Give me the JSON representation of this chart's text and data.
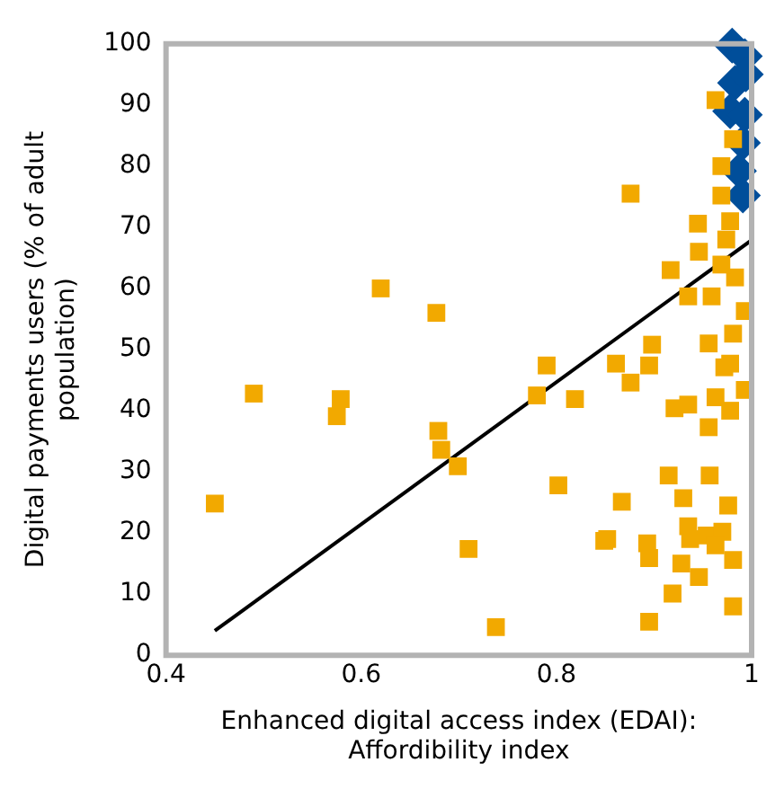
{
  "chart_data": {
    "type": "scatter",
    "xlabel": "Enhanced digital access index (EDAI): Affordibility index",
    "ylabel": "Digital payments users (% of adult population)",
    "xlim": [
      0.4,
      1
    ],
    "xticks": [
      0.4,
      0.6,
      0.8,
      {
        "value": 1,
        "label": "1"
      }
    ],
    "ylim": [
      0,
      100
    ],
    "yticks": [
      0,
      10,
      20,
      30,
      40,
      50,
      60,
      70,
      80,
      90,
      100
    ],
    "grid": false,
    "legend": false,
    "series": [
      {
        "type": "scatter",
        "marker": "square",
        "color": "#f2a900",
        "x": [
          0.45,
          0.49,
          0.579,
          0.575,
          0.62,
          0.677,
          0.679,
          0.682,
          0.699,
          0.71,
          0.738,
          0.79,
          0.78,
          0.819,
          0.802,
          0.849,
          0.861,
          0.876,
          0.895,
          0.972,
          0.921,
          0.935,
          0.956,
          0.963,
          0.978,
          0.993,
          0.867,
          0.915,
          0.957,
          0.93,
          0.976,
          0.852,
          0.893,
          0.895,
          0.935,
          0.954,
          0.937,
          0.97,
          0.963,
          0.928,
          0.981,
          0.946,
          0.919,
          0.981,
          0.895,
          0.963,
          0.969,
          0.876,
          0.969,
          0.981,
          0.945,
          0.978,
          0.946,
          0.917,
          0.974,
          0.983,
          0.935,
          0.969,
          0.959,
          0.993,
          0.981,
          0.956,
          0.898,
          0.978
        ],
        "values": [
          24.8,
          42.8,
          41.9,
          39.1,
          60,
          56,
          36.7,
          33.6,
          30.9,
          17.4,
          4.6,
          47.4,
          42.5,
          41.9,
          27.8,
          18.7,
          47.7,
          44.6,
          47.4,
          47.1,
          40.4,
          41,
          37.3,
          42.2,
          40,
          43.4,
          25.1,
          29.4,
          29.4,
          25.7,
          24.5,
          19,
          18.3,
          15.9,
          21.1,
          19.6,
          19,
          20.2,
          18,
          15,
          15.6,
          12.8,
          10.1,
          8,
          5.5,
          90.8,
          80,
          75.5,
          75.2,
          84.4,
          70.6,
          71,
          66,
          63,
          68,
          61.8,
          58.7,
          63.9,
          58.7,
          56.3,
          52.6,
          51,
          50.8,
          47.7
        ]
      },
      {
        "type": "scatter",
        "marker": "diamond",
        "color": "#004e9a",
        "x": [
          0.98,
          0.993,
          0.983,
          0.994,
          0.978,
          0.993,
          0.991,
          0.987,
          0.991
        ],
        "values": [
          99.7,
          98,
          93.6,
          95,
          89,
          88.4,
          83.8,
          79.2,
          75.2
        ]
      },
      {
        "type": "line",
        "marker": "none",
        "line_style": "solid",
        "color": "#000000",
        "x": [
          0.45,
          1
        ],
        "values": [
          4,
          67.9
        ]
      }
    ]
  }
}
